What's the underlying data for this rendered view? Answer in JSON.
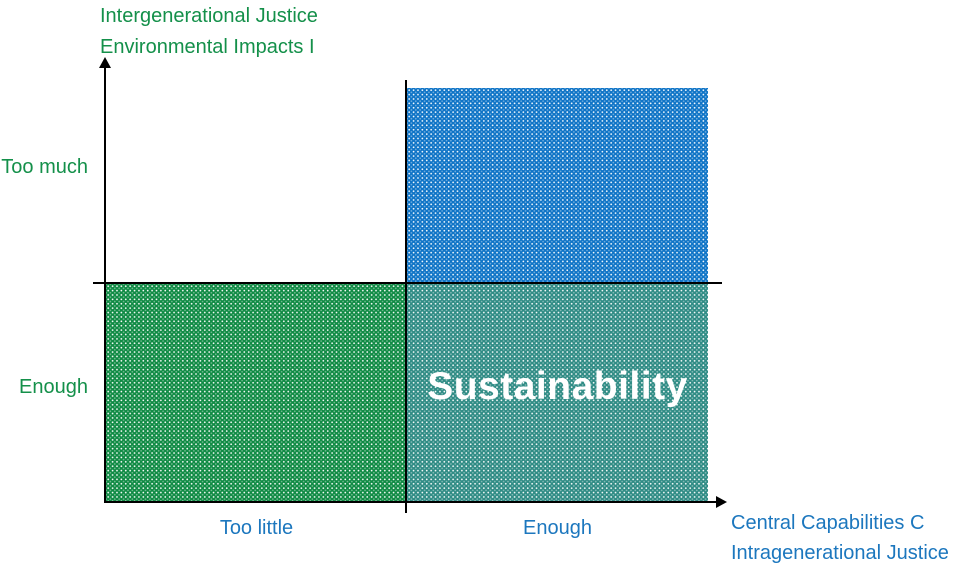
{
  "diagram": {
    "overlap_label": "Sustainability"
  },
  "y_axis": {
    "title_line1": "Intergenerational Justice",
    "title_line2": "Environmental Impacts I",
    "tick_top": "Too much",
    "tick_bottom": "Enough"
  },
  "x_axis": {
    "title_line1": "Central Capabilities C",
    "title_line2": "Intragenerational Justice",
    "tick_left": "Too little",
    "tick_right": "Enough"
  },
  "colors": {
    "green_fill": "#0E8A43",
    "blue_fill": "#0D73C6",
    "teal_fill": "#2E8B84",
    "green_text": "#14904A",
    "blue_text": "#1C77BE",
    "axis_line": "#000000",
    "overlap_text": "#FFFFFF"
  }
}
